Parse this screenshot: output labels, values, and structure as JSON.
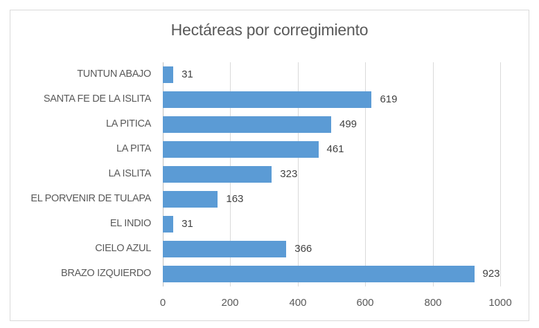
{
  "chart_data": {
    "type": "bar",
    "orientation": "horizontal",
    "title": "Hectáreas por corregimiento",
    "xlabel": "",
    "ylabel": "",
    "categories": [
      "TUNTUN ABAJO",
      "SANTA FE DE LA ISLITA",
      "LA PITICA",
      "LA PITA",
      "LA ISLITA",
      "EL PORVENIR DE TULAPA",
      "EL INDIO",
      "CIELO AZUL",
      "BRAZO IZQUIERDO"
    ],
    "values": [
      31,
      619,
      499,
      461,
      323,
      163,
      31,
      366,
      923
    ],
    "xlim": [
      0,
      1000
    ],
    "x_ticks": [
      "0",
      "200",
      "400",
      "600",
      "800",
      "1000"
    ],
    "grid": true,
    "data_labels": true,
    "legend": null,
    "bar_color": "#5b9bd5"
  },
  "labels": {
    "title": "Hectáreas por corregimiento",
    "ticks": [
      "0",
      "200",
      "400",
      "600",
      "800",
      "1000"
    ],
    "rows": [
      {
        "name": "TUNTUN ABAJO",
        "value": "31"
      },
      {
        "name": "SANTA FE DE LA ISLITA",
        "value": "619"
      },
      {
        "name": "LA PITICA",
        "value": "499"
      },
      {
        "name": "LA PITA",
        "value": "461"
      },
      {
        "name": "LA ISLITA",
        "value": "323"
      },
      {
        "name": "EL PORVENIR DE TULAPA",
        "value": "163"
      },
      {
        "name": "EL INDIO",
        "value": "31"
      },
      {
        "name": "CIELO AZUL",
        "value": "366"
      },
      {
        "name": "BRAZO IZQUIERDO",
        "value": "923"
      }
    ]
  }
}
